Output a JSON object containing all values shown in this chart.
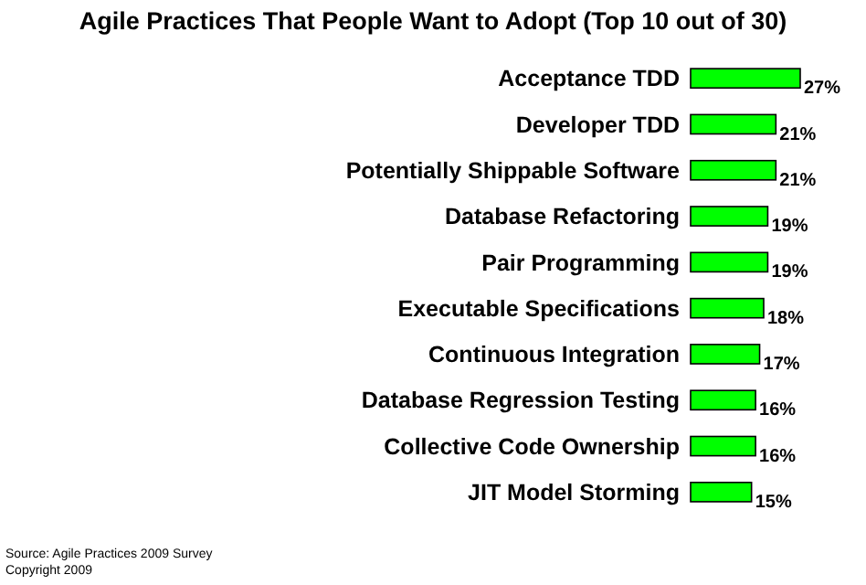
{
  "chart_data": {
    "type": "bar",
    "orientation": "horizontal",
    "title": "Agile Practices That People Want to Adopt (Top 10 out of 30)",
    "categories": [
      "Acceptance TDD",
      "Developer TDD",
      "Potentially Shippable Software",
      "Database Refactoring",
      "Pair Programming",
      "Executable Specifications",
      "Continuous Integration",
      "Database Regression Testing",
      "Collective Code Ownership",
      "JIT Model Storming"
    ],
    "values": [
      27,
      21,
      21,
      19,
      19,
      18,
      17,
      16,
      16,
      15
    ],
    "value_labels": [
      "27%",
      "21%",
      "21%",
      "19%",
      "19%",
      "18%",
      "17%",
      "16%",
      "16%",
      "15%"
    ],
    "color": "#00ff00",
    "annotations": [
      "Source: Agile Practices 2009 Survey",
      "Copyright 2009"
    ]
  }
}
